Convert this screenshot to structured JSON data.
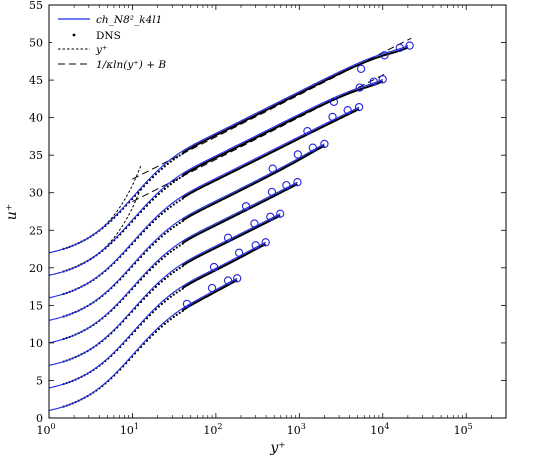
{
  "chart_data": {
    "type": "line",
    "xscale": "log",
    "xlim": [
      1,
      300000
    ],
    "ylim": [
      0,
      55
    ],
    "xlabel": "y⁺",
    "ylabel": "u⁺",
    "xticks": [
      1,
      10,
      100,
      1000,
      10000,
      100000
    ],
    "xtick_labels": [
      {
        "base": "10",
        "exp": "0"
      },
      {
        "base": "10",
        "exp": "1"
      },
      {
        "base": "10",
        "exp": "2"
      },
      {
        "base": "10",
        "exp": "3"
      },
      {
        "base": "10",
        "exp": "4"
      },
      {
        "base": "10",
        "exp": "5"
      }
    ],
    "yticks": [
      0,
      5,
      10,
      15,
      20,
      25,
      30,
      35,
      40,
      45,
      50,
      55
    ],
    "grid": false,
    "legend": {
      "position": "top-left",
      "entries": [
        {
          "label": "ch_N8²_k4l1",
          "style": "blue-solid"
        },
        {
          "label": "DNS",
          "style": "black-dots"
        },
        {
          "label": "y⁺",
          "style": "black-short-dash"
        },
        {
          "label": "1/κln(y⁺) + B",
          "style": "black-long-dash"
        }
      ]
    },
    "kappa": 0.41,
    "B": 5.2,
    "series": [
      {
        "offset": 0,
        "retau": 180,
        "markers": [
          [
            45,
            15.2
          ],
          [
            90,
            17.3
          ],
          [
            140,
            18.3
          ],
          [
            180,
            18.6
          ]
        ]
      },
      {
        "offset": 3,
        "retau": 395,
        "markers": [
          [
            95,
            20.1
          ],
          [
            190,
            22.0
          ],
          [
            300,
            23.0
          ],
          [
            395,
            23.4
          ]
        ]
      },
      {
        "offset": 6,
        "retau": 590,
        "markers": [
          [
            140,
            24.0
          ],
          [
            290,
            25.9
          ],
          [
            450,
            26.8
          ],
          [
            590,
            27.2
          ]
        ]
      },
      {
        "offset": 9,
        "retau": 950,
        "markers": [
          [
            230,
            28.2
          ],
          [
            470,
            30.1
          ],
          [
            700,
            31.0
          ],
          [
            950,
            31.4
          ]
        ]
      },
      {
        "offset": 12,
        "retau": 2000,
        "markers": [
          [
            480,
            33.2
          ],
          [
            960,
            35.1
          ],
          [
            1450,
            36.0
          ],
          [
            2000,
            36.5
          ]
        ]
      },
      {
        "offset": 15,
        "retau": 5200,
        "markers": [
          [
            1250,
            38.2
          ],
          [
            2500,
            40.1
          ],
          [
            3800,
            41.0
          ],
          [
            5200,
            41.4
          ]
        ]
      },
      {
        "offset": 18,
        "retau": 10000,
        "markers": [
          [
            2600,
            42.1
          ],
          [
            5300,
            44.0
          ],
          [
            7800,
            44.8
          ],
          [
            10000,
            45.1
          ]
        ]
      },
      {
        "offset": 21,
        "retau": 20000,
        "markers": [
          [
            5500,
            46.5
          ],
          [
            10500,
            48.3
          ],
          [
            16000,
            49.3
          ],
          [
            21000,
            49.6
          ]
        ]
      }
    ],
    "colors": {
      "model": "#1f2be6",
      "marker": "#2222dd",
      "reference": "#000000"
    }
  }
}
